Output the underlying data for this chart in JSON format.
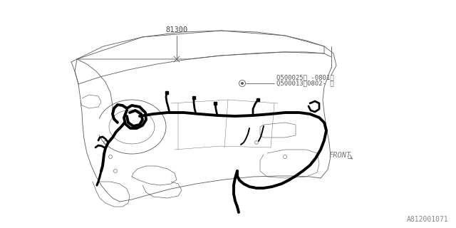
{
  "bg_color": "#ffffff",
  "line_color": "#5a5a5a",
  "thick_color": "#000000",
  "label_81300": "81300",
  "label_part1": "Q500025＜ -0801＞",
  "label_part2": "Q500013＜0802- ＞",
  "label_front": "FRONT",
  "watermark": "A812001071",
  "thin_lw": 0.6,
  "thick_lw": 2.8
}
